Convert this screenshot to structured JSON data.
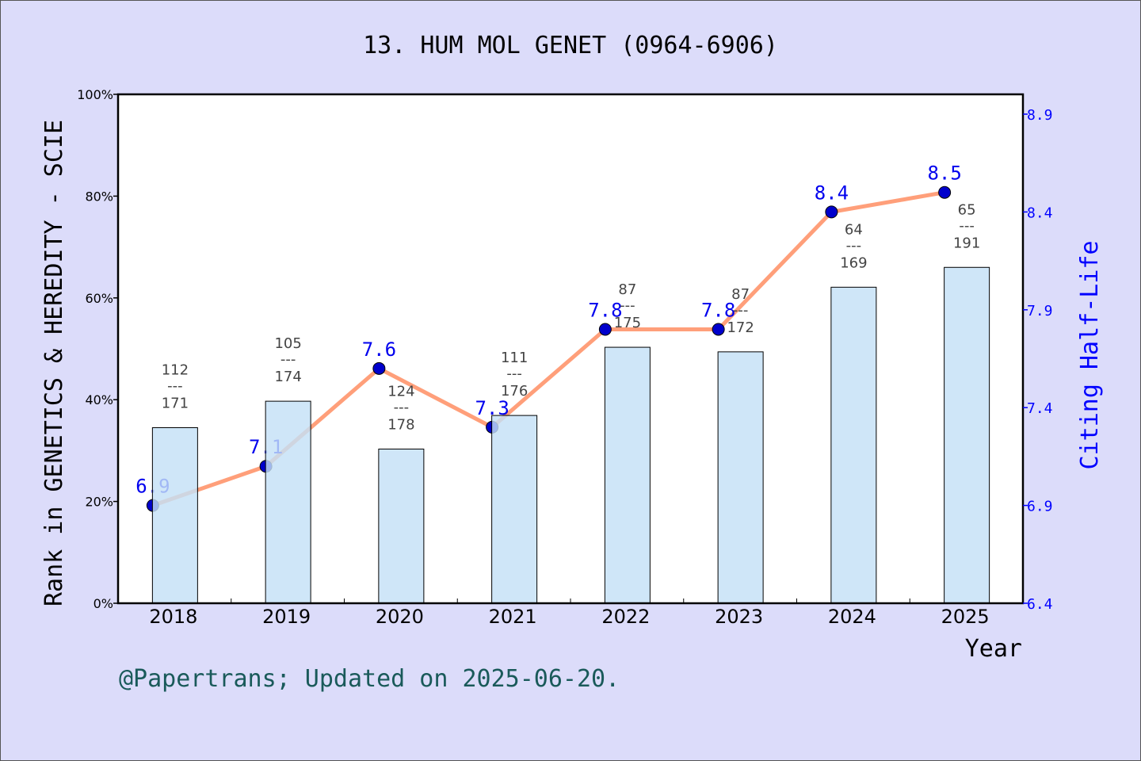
{
  "chart_data": {
    "type": "bar+line",
    "title": "13. HUM MOL GENET (0964-6906)",
    "xlabel": "Year",
    "ylabel": "Rank in GENETICS & HEREDITY - SCIE",
    "y2label": "Citing Half-Life",
    "categories": [
      "2018",
      "2019",
      "2020",
      "2021",
      "2022",
      "2023",
      "2024",
      "2025"
    ],
    "ylim": [
      0,
      100
    ],
    "yticks": [
      "0%",
      "20%",
      "40%",
      "60%",
      "80%",
      "100%"
    ],
    "y2lim": [
      6.4,
      9.0
    ],
    "y2ticks": [
      "6.4",
      "6.9",
      "7.4",
      "7.9",
      "8.4",
      "8.9"
    ],
    "bars": {
      "rank": [
        112,
        105,
        124,
        111,
        87,
        87,
        64,
        65
      ],
      "total": [
        171,
        174,
        178,
        176,
        175,
        172,
        169,
        191
      ],
      "values_pct": [
        34.5,
        39.7,
        30.3,
        36.9,
        50.3,
        49.4,
        62.1,
        66.0
      ],
      "color": "#c5e0f7"
    },
    "line": {
      "values": [
        6.9,
        7.1,
        7.6,
        7.3,
        7.8,
        7.8,
        8.4,
        8.5
      ],
      "labels": [
        "6.9",
        "7.1",
        "7.6",
        "7.3",
        "7.8",
        "7.8",
        "8.4",
        "8.5"
      ],
      "color": "#ff9f7a",
      "marker_color": "#0000cc"
    },
    "rank_separator": "---",
    "grid": false,
    "legend": "none"
  },
  "footer": "@Papertrans; Updated on 2025-06-20."
}
